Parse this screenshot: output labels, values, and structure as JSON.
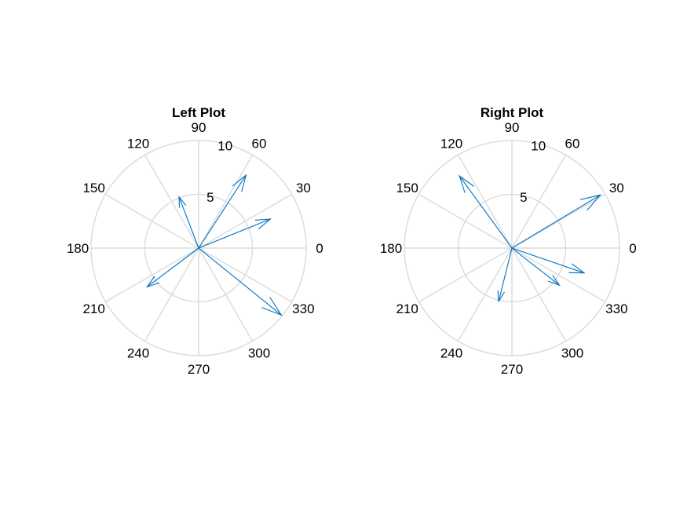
{
  "chart_data": [
    {
      "type": "compass",
      "title": "Left Plot",
      "rlim": [
        0,
        10
      ],
      "r_ticks": [
        "5",
        "10"
      ],
      "theta_tick_labels": [
        "0",
        "30",
        "60",
        "90",
        "120",
        "150",
        "180",
        "210",
        "240",
        "270",
        "300",
        "330"
      ],
      "grid": true,
      "arrow_color": "#0072bd",
      "arrows": [
        {
          "angle_deg": 57,
          "magnitude": 8.1
        },
        {
          "angle_deg": 22,
          "magnitude": 7.2
        },
        {
          "angle_deg": 111,
          "magnitude": 5.1
        },
        {
          "angle_deg": 217,
          "magnitude": 6.0
        },
        {
          "angle_deg": 321,
          "magnitude": 9.9
        }
      ]
    },
    {
      "type": "compass",
      "title": "Right Plot",
      "rlim": [
        0,
        10
      ],
      "r_ticks": [
        "5",
        "10"
      ],
      "theta_tick_labels": [
        "0",
        "30",
        "60",
        "90",
        "120",
        "150",
        "180",
        "210",
        "240",
        "270",
        "300",
        "330"
      ],
      "grid": true,
      "arrow_color": "#0072bd",
      "arrows": [
        {
          "angle_deg": 31,
          "magnitude": 9.6
        },
        {
          "angle_deg": 126,
          "magnitude": 8.3
        },
        {
          "angle_deg": 341,
          "magnitude": 7.1
        },
        {
          "angle_deg": 322,
          "magnitude": 5.6
        },
        {
          "angle_deg": 256,
          "magnitude": 5.1
        }
      ]
    }
  ]
}
